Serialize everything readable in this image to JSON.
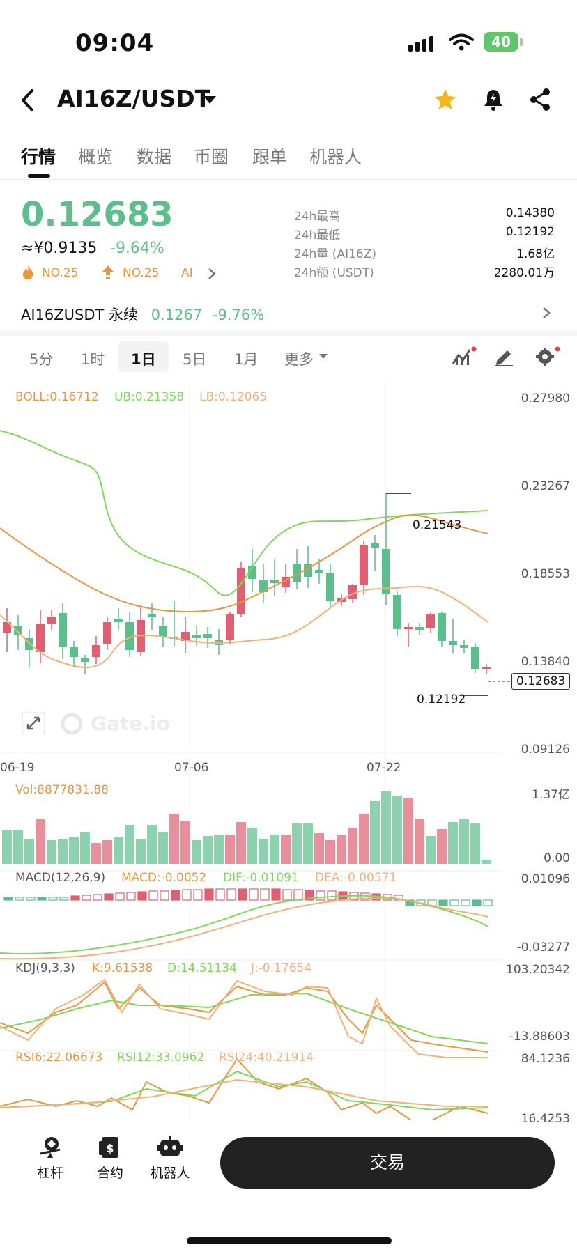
{
  "status_bar": {
    "time": "09:04",
    "battery": "40"
  },
  "header": {
    "pair": "AI16Z/USDT"
  },
  "tabs": [
    "行情",
    "概览",
    "数据",
    "币圈",
    "跟单",
    "机器人"
  ],
  "price": {
    "last": "0.12683",
    "cny": "≈¥0.9135",
    "change": "-9.64%",
    "rank1": "NO.25",
    "rank2": "NO.25",
    "tag": "AI"
  },
  "stats": [
    {
      "label": "24h最高",
      "value": "0.14380"
    },
    {
      "label": "24h最低",
      "value": "0.12192"
    },
    {
      "label": "24h量 (AI16Z)",
      "value": "1.68亿"
    },
    {
      "label": "24h额 (USDT)",
      "value": "2280.01万"
    }
  ],
  "perp": {
    "name": "AI16ZUSDT 永续",
    "price": "0.1267",
    "change": "-9.76%"
  },
  "intervals": [
    "5分",
    "1时",
    "1日",
    "5日",
    "1月",
    "更多"
  ],
  "intervals_active": "1日",
  "chart": {
    "boll": {
      "boll": "BOLL:0.16712",
      "ub": "UB:0.21358",
      "lb": "LB:0.12065"
    },
    "y_axis": [
      "0.27980",
      "0.23267",
      "0.18553",
      "0.13840",
      "0.09126"
    ],
    "x_axis": [
      "06-19",
      "07-06",
      "07-22"
    ],
    "high_marker": "0.21543",
    "low_marker": "0.12192",
    "current_tag": "0.12683",
    "watermark": "Gate.io",
    "vol": {
      "label": "Vol:8877831.88",
      "max": "1.37亿",
      "min": "0.00"
    },
    "macd": {
      "label": "MACD(12,26,9)",
      "macd": "MACD:-0.0052",
      "dif": "DIF:-0.01091",
      "dea": "DEA:-0.00571",
      "max": "0.01096",
      "min": "-0.03277"
    },
    "kdj": {
      "label": "KDJ(9,3,3)",
      "k": "K:9.61538",
      "d": "D:14.51134",
      "j": "J:-0.17654",
      "max": "103.20342",
      "min": "-13.88603"
    },
    "rsi": {
      "rsi6": "RSI6:22.06673",
      "rsi12": "RSI12:33.0962",
      "rsi24": "RSI24:40.21914",
      "max": "84.1236",
      "min": "16.4253"
    }
  },
  "bottom_nav": {
    "leverage": "杠杆",
    "contract": "合约",
    "robot": "机器人",
    "trade": "交易"
  },
  "colors": {
    "up": "#5cbf8b",
    "down": "#e06071",
    "boll_mid": "#e8973f",
    "boll_up": "#7ed957"
  }
}
